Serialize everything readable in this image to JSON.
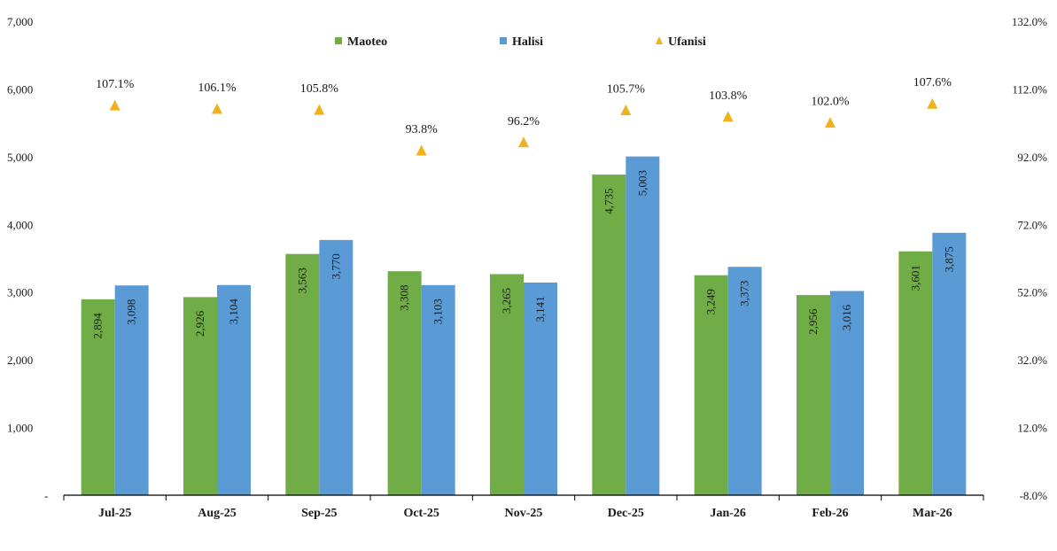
{
  "colors": {
    "maoteo": "#70AD47",
    "halisi": "#5B9BD5",
    "ufanisi": "#EFB21C",
    "axis": "#000000"
  },
  "chart_data": {
    "type": "bar",
    "categories": [
      "Jul-25",
      "Aug-25",
      "Sep-25",
      "Oct-25",
      "Nov-25",
      "Dec-25",
      "Jan-26",
      "Feb-26",
      "Mar-26"
    ],
    "series": [
      {
        "name": "Maoteo",
        "axis": "left",
        "values": [
          2894,
          2926,
          3563,
          3308,
          3265,
          4735,
          3249,
          2956,
          3601
        ],
        "labels": [
          "2,894",
          "2,926",
          "3,563",
          "3,308",
          "3,265",
          "4,735",
          "3,249",
          "2,956",
          "3,601"
        ]
      },
      {
        "name": "Halisi",
        "axis": "left",
        "values": [
          3098,
          3104,
          3770,
          3103,
          3141,
          5003,
          3373,
          3016,
          3875
        ],
        "labels": [
          "3,098",
          "3,104",
          "3,770",
          "3,103",
          "3,141",
          "5,003",
          "3,373",
          "3,016",
          "3,875"
        ]
      },
      {
        "name": "Ufanisi",
        "axis": "right",
        "marker": "triangle",
        "values": [
          107.1,
          106.1,
          105.8,
          93.8,
          96.2,
          105.7,
          103.8,
          102.0,
          107.6
        ],
        "labels": [
          "107.1%",
          "106.1%",
          "105.8%",
          "93.8%",
          "96.2%",
          "105.7%",
          "103.8%",
          "102.0%",
          "107.6%"
        ]
      }
    ],
    "ylim": [
      0,
      7000
    ],
    "y_ticks": [
      0,
      1000,
      2000,
      3000,
      4000,
      5000,
      6000,
      7000
    ],
    "y_tick_labels": [
      "-",
      "1,000",
      "2,000",
      "3,000",
      "4,000",
      "5,000",
      "6,000",
      "7,000"
    ],
    "y2lim": [
      -8,
      132
    ],
    "y2_ticks": [
      -8,
      12,
      32,
      52,
      72,
      92,
      112,
      132
    ],
    "y2_tick_labels": [
      "-8.0%",
      "12.0%",
      "32.0%",
      "52.0%",
      "72.0%",
      "92.0%",
      "112.0%",
      "132.0%"
    ],
    "legend_position": "top",
    "grid": false
  }
}
